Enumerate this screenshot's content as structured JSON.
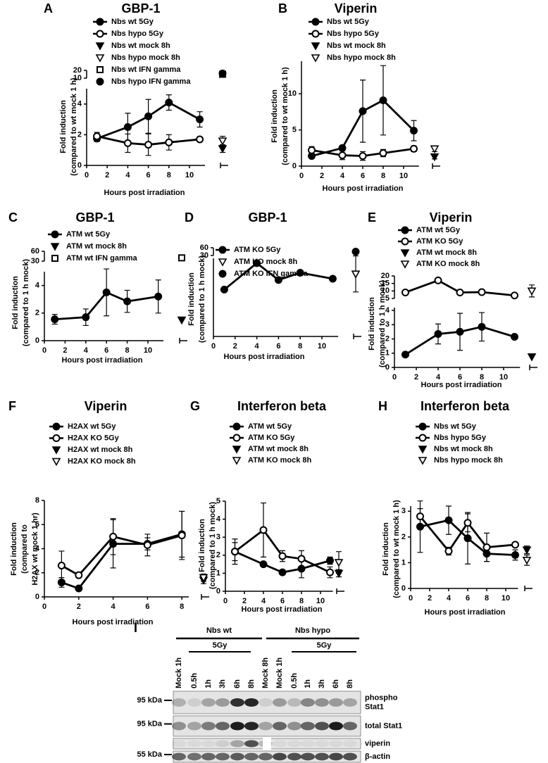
{
  "chart_data": [
    {
      "type": "line",
      "label": "A",
      "title": "GBP-1",
      "xlabel": "Hours post irradiation",
      "ylabel": [
        "Fold induction",
        "(compared to wt mock 1 h)"
      ],
      "xlim": [
        0,
        11.5
      ],
      "xticks": [
        0,
        2,
        4,
        6,
        8,
        10
      ],
      "ylim": [
        0,
        5
      ],
      "yticks": [
        0,
        2,
        4
      ],
      "upper": {
        "ylim": [
          10,
          20
        ],
        "yticks": [
          10,
          20
        ]
      },
      "series": [
        {
          "name": "Nbs wt 5Gy",
          "marker": "filled-circle",
          "x": [
            1,
            4,
            6,
            8,
            11
          ],
          "values": [
            1.75,
            2.5,
            3.2,
            4.1,
            3.0
          ],
          "errors": [
            0.2,
            0.9,
            1.1,
            0.5,
            0.5
          ]
        },
        {
          "name": "Nbs hypo 5Gy",
          "marker": "open-circle",
          "x": [
            1,
            4,
            6,
            8,
            11
          ],
          "values": [
            1.9,
            1.45,
            1.35,
            1.5,
            1.7
          ],
          "errors": [
            0.25,
            0.6,
            0.7,
            0.5,
            0.1
          ]
        },
        {
          "name": "Nbs wt mock 8h",
          "marker": "filled-triangle",
          "values": [
            1.1
          ],
          "errors": [
            0.25
          ]
        },
        {
          "name": "Nbs hypo mock 8h",
          "marker": "open-triangle",
          "values": [
            1.6
          ],
          "errors": [
            0.3
          ]
        },
        {
          "name": "Nbs wt IFN gamma",
          "marker": "open-square",
          "axis": "upper",
          "values": [
            15
          ]
        },
        {
          "name": "Nbs hypo IFN gamma",
          "marker": "filled-circle",
          "axis": "upper",
          "values": [
            16
          ]
        }
      ]
    },
    {
      "type": "line",
      "label": "B",
      "title": "Viperin",
      "xlabel": "Hours post irradiation",
      "ylabel": [
        "Fold induction",
        "(compared to wt mock 1 h)"
      ],
      "xlim": [
        0,
        11.5
      ],
      "xticks": [
        0,
        2,
        4,
        6,
        8,
        10
      ],
      "ylim": [
        0,
        14.5
      ],
      "yticks": [
        0,
        5,
        10
      ],
      "series": [
        {
          "name": "Nbs wt 5Gy",
          "marker": "filled-circle",
          "x": [
            1,
            4,
            6,
            8,
            11
          ],
          "values": [
            1.4,
            2.5,
            7.6,
            9.1,
            4.9
          ],
          "errors": [
            0.3,
            0.3,
            4.3,
            4.8,
            1.4
          ]
        },
        {
          "name": "Nbs hypo 5Gy",
          "marker": "open-circle",
          "x": [
            1,
            4,
            6,
            8,
            11
          ],
          "values": [
            2.2,
            1.5,
            1.4,
            1.8,
            2.4
          ],
          "errors": [
            0.5,
            0.6,
            0.6,
            0.5,
            0.4
          ]
        },
        {
          "name": "Nbs wt mock 8h",
          "marker": "filled-triangle",
          "values": [
            1.3
          ],
          "errors": [
            0.3
          ]
        },
        {
          "name": "Nbs hypo mock 8h",
          "marker": "open-triangle",
          "values": [
            2.4
          ],
          "errors": [
            0.4
          ]
        }
      ]
    },
    {
      "type": "line",
      "label": "C",
      "title": "GBP-1",
      "xlabel": "Hours post irradiation",
      "ylabel": [
        "Fold induction",
        "(compared to 1 h mock)"
      ],
      "xlim": [
        0,
        11.5
      ],
      "xticks": [
        0,
        2,
        4,
        6,
        8,
        10
      ],
      "ylim": [
        0,
        5
      ],
      "yticks": [
        0,
        2,
        4
      ],
      "upper": {
        "ylim": [
          30,
          60
        ],
        "yticks": [
          30,
          60
        ]
      },
      "series": [
        {
          "name": "ATM wt 5Gy",
          "marker": "filled-circle",
          "x": [
            1,
            4,
            6,
            8,
            11
          ],
          "values": [
            1.55,
            1.7,
            3.5,
            2.85,
            3.2
          ],
          "errors": [
            0.35,
            0.6,
            1.7,
            0.8,
            1.2
          ]
        },
        {
          "name": "ATM wt mock 8h",
          "marker": "filled-triangle",
          "values": [
            1.5
          ]
        },
        {
          "name": "ATM wt IFN gamma",
          "marker": "open-square",
          "axis": "upper",
          "values": [
            40
          ]
        }
      ]
    },
    {
      "type": "line",
      "label": "D",
      "title": "GBP-1",
      "xlabel": "Hours post irradiation",
      "ylabel": [
        "Fold induction",
        "(compared to 1 h mock)"
      ],
      "xlim": [
        0,
        11.5
      ],
      "xticks": [
        0,
        2,
        4,
        6,
        8,
        10
      ],
      "ylim": [
        0,
        6.5
      ],
      "yticks": [],
      "upper": {
        "ylim": [
          30,
          60
        ],
        "yticks": [
          30,
          60
        ]
      },
      "series": [
        {
          "name": "ATM KO 5Gy",
          "marker": "filled-circle",
          "x": [
            1,
            4,
            6,
            8,
            11
          ],
          "values": [
            3.9,
            6.1,
            4.7,
            5.3,
            4.8
          ]
        },
        {
          "name": "ATM KO mock 8h",
          "marker": "open-triangle",
          "values": [
            5.2
          ],
          "errors": [
            1.5
          ]
        },
        {
          "name": "ATM KO IFN gamma",
          "marker": "filled-circle",
          "axis": "upper",
          "values": [
            45
          ]
        }
      ]
    },
    {
      "type": "line",
      "label": "E",
      "title": "Viperin",
      "xlabel": "Hours post irradiation",
      "ylabel": [
        "Fold induction",
        "(compared to 1 h mock)"
      ],
      "xlim": [
        0,
        11.5
      ],
      "xticks": [
        0,
        2,
        4,
        6,
        8,
        10
      ],
      "ylim": [
        0,
        4.2
      ],
      "yticks": [
        0,
        1,
        2,
        3,
        4
      ],
      "upper": {
        "ylim": [
          5,
          20
        ],
        "yticks": [
          5,
          10,
          15,
          20
        ]
      },
      "series": [
        {
          "name": "ATM wt 5Gy",
          "marker": "filled-circle",
          "x": [
            1,
            4,
            6,
            8,
            11
          ],
          "values": [
            0.9,
            2.35,
            2.5,
            2.85,
            2.15
          ],
          "errors": [
            0.05,
            0.7,
            1.3,
            1.0,
            0.05
          ]
        },
        {
          "name": "ATM KO 5Gy",
          "marker": "open-circle",
          "axis": "upper",
          "x": [
            1,
            4,
            6,
            8,
            11
          ],
          "values": [
            9,
            17,
            9,
            9.2,
            7
          ],
          "errors": [
            1,
            0.8,
            1.2,
            1.2,
            0.5
          ]
        },
        {
          "name": "ATM wt mock 8h",
          "marker": "filled-triangle",
          "values": [
            0.75
          ]
        },
        {
          "name": "ATM KO mock 8h",
          "marker": "open-triangle",
          "axis": "upper",
          "values": [
            10
          ],
          "errors": [
            4
          ]
        }
      ]
    },
    {
      "type": "line",
      "label": "F",
      "title": "Viperin",
      "xlabel": "Hours post irradiation",
      "ylabel": [
        "Fold induction",
        "(compared to",
        "H2AX wt mock 1 hr)"
      ],
      "xlim": [
        0,
        8.4
      ],
      "xticks": [
        0,
        2,
        4,
        6,
        8
      ],
      "ylim": [
        0,
        8
      ],
      "yticks": [
        0,
        2,
        4,
        6,
        8
      ],
      "series": [
        {
          "name": "H2AX wt 5Gy",
          "marker": "filled-circle",
          "x": [
            1,
            2,
            4,
            6,
            8
          ],
          "values": [
            1.2,
            0.7,
            4.4,
            4.4,
            5.2
          ],
          "errors": [
            0.4,
            0.1,
            2.0,
            0.5,
            1.9
          ]
        },
        {
          "name": "H2AX KO 5Gy",
          "marker": "open-circle",
          "x": [
            1,
            2,
            4,
            6,
            8
          ],
          "values": [
            2.6,
            1.8,
            5.0,
            4.3,
            5.1
          ],
          "errors": [
            1.2,
            0.2,
            1.5,
            0.9,
            2.0
          ]
        },
        {
          "name": "H2AX wt mock 8h",
          "marker": "filled-triangle",
          "values": [
            1.4
          ],
          "errors": [
            0.3
          ]
        },
        {
          "name": "H2AX KO mock 8h",
          "marker": "open-triangle",
          "values": [
            1.6
          ],
          "errors": [
            0.3
          ]
        }
      ]
    },
    {
      "type": "line",
      "label": "G",
      "title": "Interferon beta",
      "xlabel": "Hours post irradiation",
      "ylabel": [
        "Fold induction",
        "(compared to 1 h mock)"
      ],
      "xlim": [
        0,
        11.3
      ],
      "xticks": [
        0,
        2,
        4,
        6,
        8,
        10
      ],
      "ylim": [
        0,
        5
      ],
      "yticks": [
        0,
        1,
        2,
        3,
        4,
        5
      ],
      "series": [
        {
          "name": "ATM wt 5Gy",
          "marker": "filled-circle",
          "x": [
            1,
            4,
            6,
            8,
            11
          ],
          "values": [
            2.2,
            1.5,
            1.05,
            1.25,
            1.7
          ],
          "errors": [
            0.7,
            0.05,
            0.1,
            0.5,
            0.2
          ]
        },
        {
          "name": "ATM KO 5Gy",
          "marker": "open-circle",
          "x": [
            1,
            4,
            6,
            8,
            11
          ],
          "values": [
            2.2,
            3.4,
            1.95,
            1.8,
            1.05
          ],
          "errors": [
            0.5,
            1.5,
            0.3,
            0.45,
            0.3
          ]
        },
        {
          "name": "ATM wt mock 8h",
          "marker": "filled-triangle",
          "values": [
            1.0
          ],
          "errors": [
            0.2
          ]
        },
        {
          "name": "ATM KO mock 8h",
          "marker": "open-triangle",
          "values": [
            1.6
          ],
          "errors": [
            0.6
          ]
        }
      ]
    },
    {
      "type": "line",
      "label": "H",
      "title": "Interferon beta",
      "xlabel": "Hours post irradiation",
      "ylabel": [
        "Fold induction",
        "(compared to wt mock 1 h)"
      ],
      "xlim": [
        0,
        11.3
      ],
      "xticks": [
        0,
        2,
        4,
        6,
        8,
        10
      ],
      "ylim": [
        0,
        3.2
      ],
      "yticks": [
        0,
        1,
        2,
        3
      ],
      "series": [
        {
          "name": "Nbs wt 5Gy",
          "marker": "filled-circle",
          "x": [
            1,
            4,
            6,
            8,
            11
          ],
          "values": [
            2.4,
            2.65,
            1.95,
            1.35,
            1.3
          ],
          "errors": [
            1.0,
            0.55,
            1.0,
            0.3,
            0.2
          ]
        },
        {
          "name": "Nbs hypo 5Gy",
          "marker": "open-circle",
          "x": [
            1,
            4,
            6,
            8,
            11
          ],
          "values": [
            2.8,
            1.45,
            2.55,
            1.6,
            1.7
          ],
          "errors": [
            0.3,
            0.15,
            0.35,
            0.55,
            0.05
          ]
        },
        {
          "name": "Nbs wt mock 8h",
          "marker": "filled-triangle",
          "values": [
            1.5
          ],
          "errors": [
            0.15
          ]
        },
        {
          "name": "Nbs hypo mock 8h",
          "marker": "open-triangle",
          "values": [
            1.1
          ],
          "errors": [
            0.2
          ]
        }
      ]
    }
  ],
  "blot": {
    "label": "I",
    "groups": [
      {
        "name": "Nbs wt",
        "treatment": "5Gy"
      },
      {
        "name": "Nbs hypo",
        "treatment": "5Gy"
      }
    ],
    "lanes": [
      "Mock 1h",
      "0.5h",
      "1h",
      "3h",
      "6h",
      "8h",
      "Mock 8h",
      "Mock 1h",
      "0.5h",
      "1h",
      "3h",
      "6h",
      "8h"
    ],
    "rows": [
      {
        "name": [
          "phospho",
          "Stat1"
        ],
        "marker": "95 kDa"
      },
      {
        "name": [
          "total Stat1"
        ],
        "marker": "95 kDa"
      },
      {
        "name": [
          "viperin"
        ]
      },
      {
        "name": [
          "β-actin"
        ],
        "marker": "55 kDa"
      }
    ]
  }
}
